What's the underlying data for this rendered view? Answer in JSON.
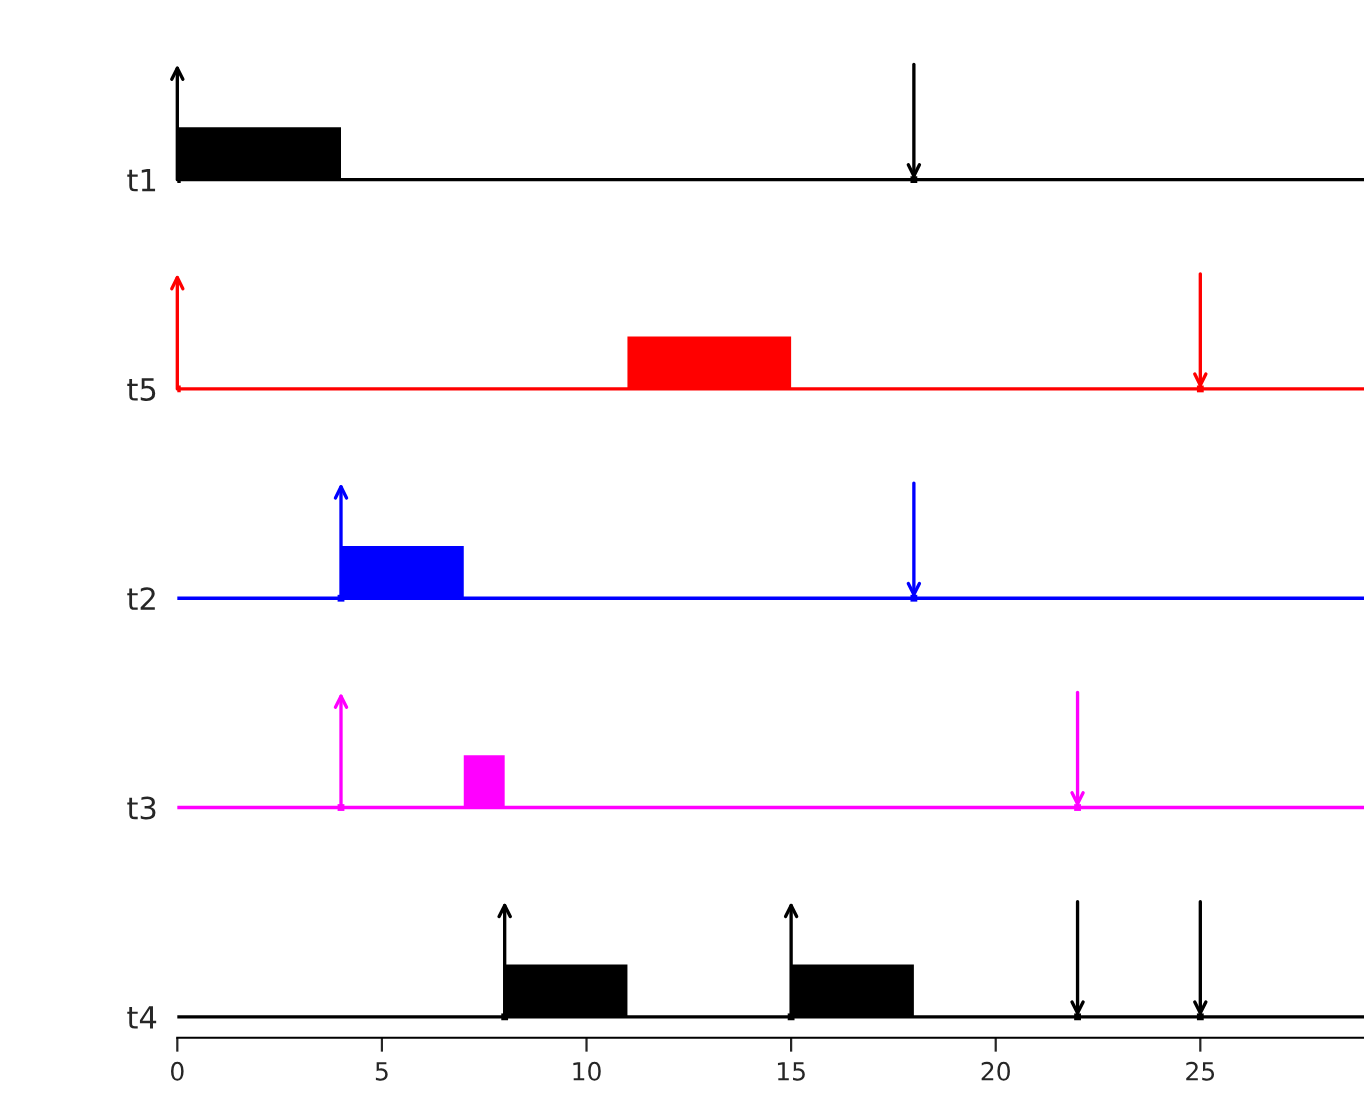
{
  "chart_data": {
    "type": "bar",
    "orientation": "horizontal",
    "categories": [
      "t1",
      "t5",
      "t2",
      "t3",
      "t4"
    ],
    "xlim": [
      0,
      29
    ],
    "xticks": [
      0,
      5,
      10,
      15,
      20,
      25
    ],
    "ref_lines": [
      {
        "axis": "y",
        "value": "t1",
        "color": "#000000"
      },
      {
        "axis": "y",
        "value": "t5",
        "color": "#ff0000"
      },
      {
        "axis": "y",
        "value": "t2",
        "color": "#0000ff"
      },
      {
        "axis": "y",
        "value": "t3",
        "color": "#ff00ff"
      },
      {
        "axis": "y",
        "value": "t4",
        "color": "#000000"
      }
    ],
    "series": [
      {
        "base": [
          0,
          11,
          4,
          7,
          8
        ],
        "values": [
          4,
          4,
          3,
          1,
          3
        ],
        "colors": [
          "#000000",
          "#ff0000",
          "#0000ff",
          "#ff00ff",
          "#000000"
        ]
      },
      {
        "base": [
          null,
          null,
          null,
          null,
          15
        ],
        "values": [
          null,
          null,
          null,
          null,
          3
        ],
        "colors": [
          "#000000",
          "#ff0000",
          "#0000ff",
          "#ff00ff",
          "#000000"
        ]
      },
      {
        "type": "scatter",
        "values": [
          0,
          0,
          4,
          4,
          8
        ],
        "colors": [
          "#000000",
          "#ff0000",
          "#0000ff",
          "#ff00ff",
          "#000000"
        ]
      },
      {
        "type": "scatter",
        "values": [
          null,
          null,
          null,
          null,
          15
        ],
        "colors": [
          "#000000",
          "#ff0000",
          "#0000ff",
          "#ff00ff",
          "#000000"
        ]
      },
      {
        "type": "scatter",
        "values": [
          18,
          25,
          18,
          22,
          22
        ],
        "colors": [
          "#000000",
          "#ff0000",
          "#0000ff",
          "#ff00ff",
          "#000000"
        ]
      },
      {
        "type": "scatter",
        "values": [
          null,
          null,
          null,
          null,
          25
        ],
        "colors": [
          "#000000",
          "#ff0000",
          "#0000ff",
          "#ff00ff",
          "#000000"
        ]
      }
    ]
  }
}
